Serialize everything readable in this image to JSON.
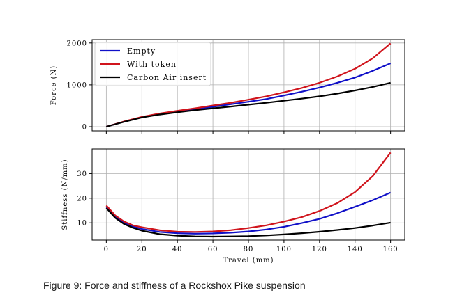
{
  "caption": "Figure 9: Force and stiffness of a Rockshox Pike suspension",
  "colors": {
    "Empty": "#1010c8",
    "With token": "#d0141c",
    "Carbon Air insert": "#000000"
  },
  "chart_data": [
    {
      "type": "line",
      "title": "",
      "xlabel": "",
      "ylabel": "Force (N)",
      "xlim": [
        -8,
        168
      ],
      "ylim": [
        -100,
        2080
      ],
      "xticks": [
        0,
        20,
        40,
        60,
        80,
        100,
        120,
        140,
        160
      ],
      "xtick_labels": [
        "",
        "",
        "",
        "",
        "",
        "",
        "",
        "",
        ""
      ],
      "yticks": [
        0,
        1000,
        2000
      ],
      "ytick_labels": [
        "0",
        "1000",
        "2000"
      ],
      "grid": true,
      "legend": "top-left",
      "x": [
        0,
        10,
        20,
        30,
        40,
        50,
        60,
        70,
        80,
        90,
        100,
        110,
        120,
        130,
        140,
        150,
        160
      ],
      "series": [
        {
          "name": "Empty",
          "values": [
            0,
            120,
            230,
            305,
            365,
            420,
            475,
            535,
            595,
            660,
            745,
            835,
            935,
            1050,
            1175,
            1335,
            1515
          ]
        },
        {
          "name": "With token",
          "values": [
            0,
            125,
            235,
            315,
            380,
            440,
            505,
            570,
            645,
            725,
            820,
            925,
            1050,
            1200,
            1385,
            1635,
            1990
          ]
        },
        {
          "name": "Carbon Air insert",
          "values": [
            0,
            115,
            220,
            290,
            345,
            395,
            440,
            480,
            525,
            570,
            620,
            670,
            725,
            790,
            865,
            950,
            1050
          ]
        }
      ]
    },
    {
      "type": "line",
      "title": "",
      "xlabel": "Travel (mm)",
      "ylabel": "Stiffness (N/mm)",
      "xlim": [
        -8,
        168
      ],
      "ylim": [
        3,
        40
      ],
      "xticks": [
        0,
        20,
        40,
        60,
        80,
        100,
        120,
        140,
        160
      ],
      "xtick_labels": [
        "0",
        "20",
        "40",
        "60",
        "80",
        "100",
        "120",
        "140",
        "160"
      ],
      "yticks": [
        10,
        20,
        30
      ],
      "ytick_labels": [
        "10",
        "20",
        "30"
      ],
      "grid": true,
      "x": [
        0,
        5,
        10,
        15,
        20,
        30,
        40,
        50,
        60,
        70,
        80,
        90,
        100,
        110,
        120,
        130,
        140,
        150,
        160
      ],
      "series": [
        {
          "name": "Empty",
          "values": [
            16.5,
            12.5,
            10,
            8.5,
            7.5,
            6.3,
            5.8,
            5.6,
            5.7,
            6.0,
            6.5,
            7.3,
            8.4,
            9.9,
            11.6,
            13.9,
            16.5,
            19.2,
            22.3
          ]
        },
        {
          "name": "With token",
          "values": [
            17,
            13,
            10.5,
            9,
            8.2,
            7.0,
            6.4,
            6.3,
            6.5,
            7.0,
            7.9,
            9.0,
            10.5,
            12.3,
            14.8,
            18.0,
            22.5,
            29.0,
            38.5
          ]
        },
        {
          "name": "Carbon Air insert",
          "values": [
            16,
            12,
            9.5,
            8,
            6.8,
            5.4,
            4.8,
            4.5,
            4.4,
            4.5,
            4.6,
            4.9,
            5.3,
            5.8,
            6.4,
            7.1,
            7.9,
            8.9,
            10.1
          ]
        }
      ]
    }
  ]
}
